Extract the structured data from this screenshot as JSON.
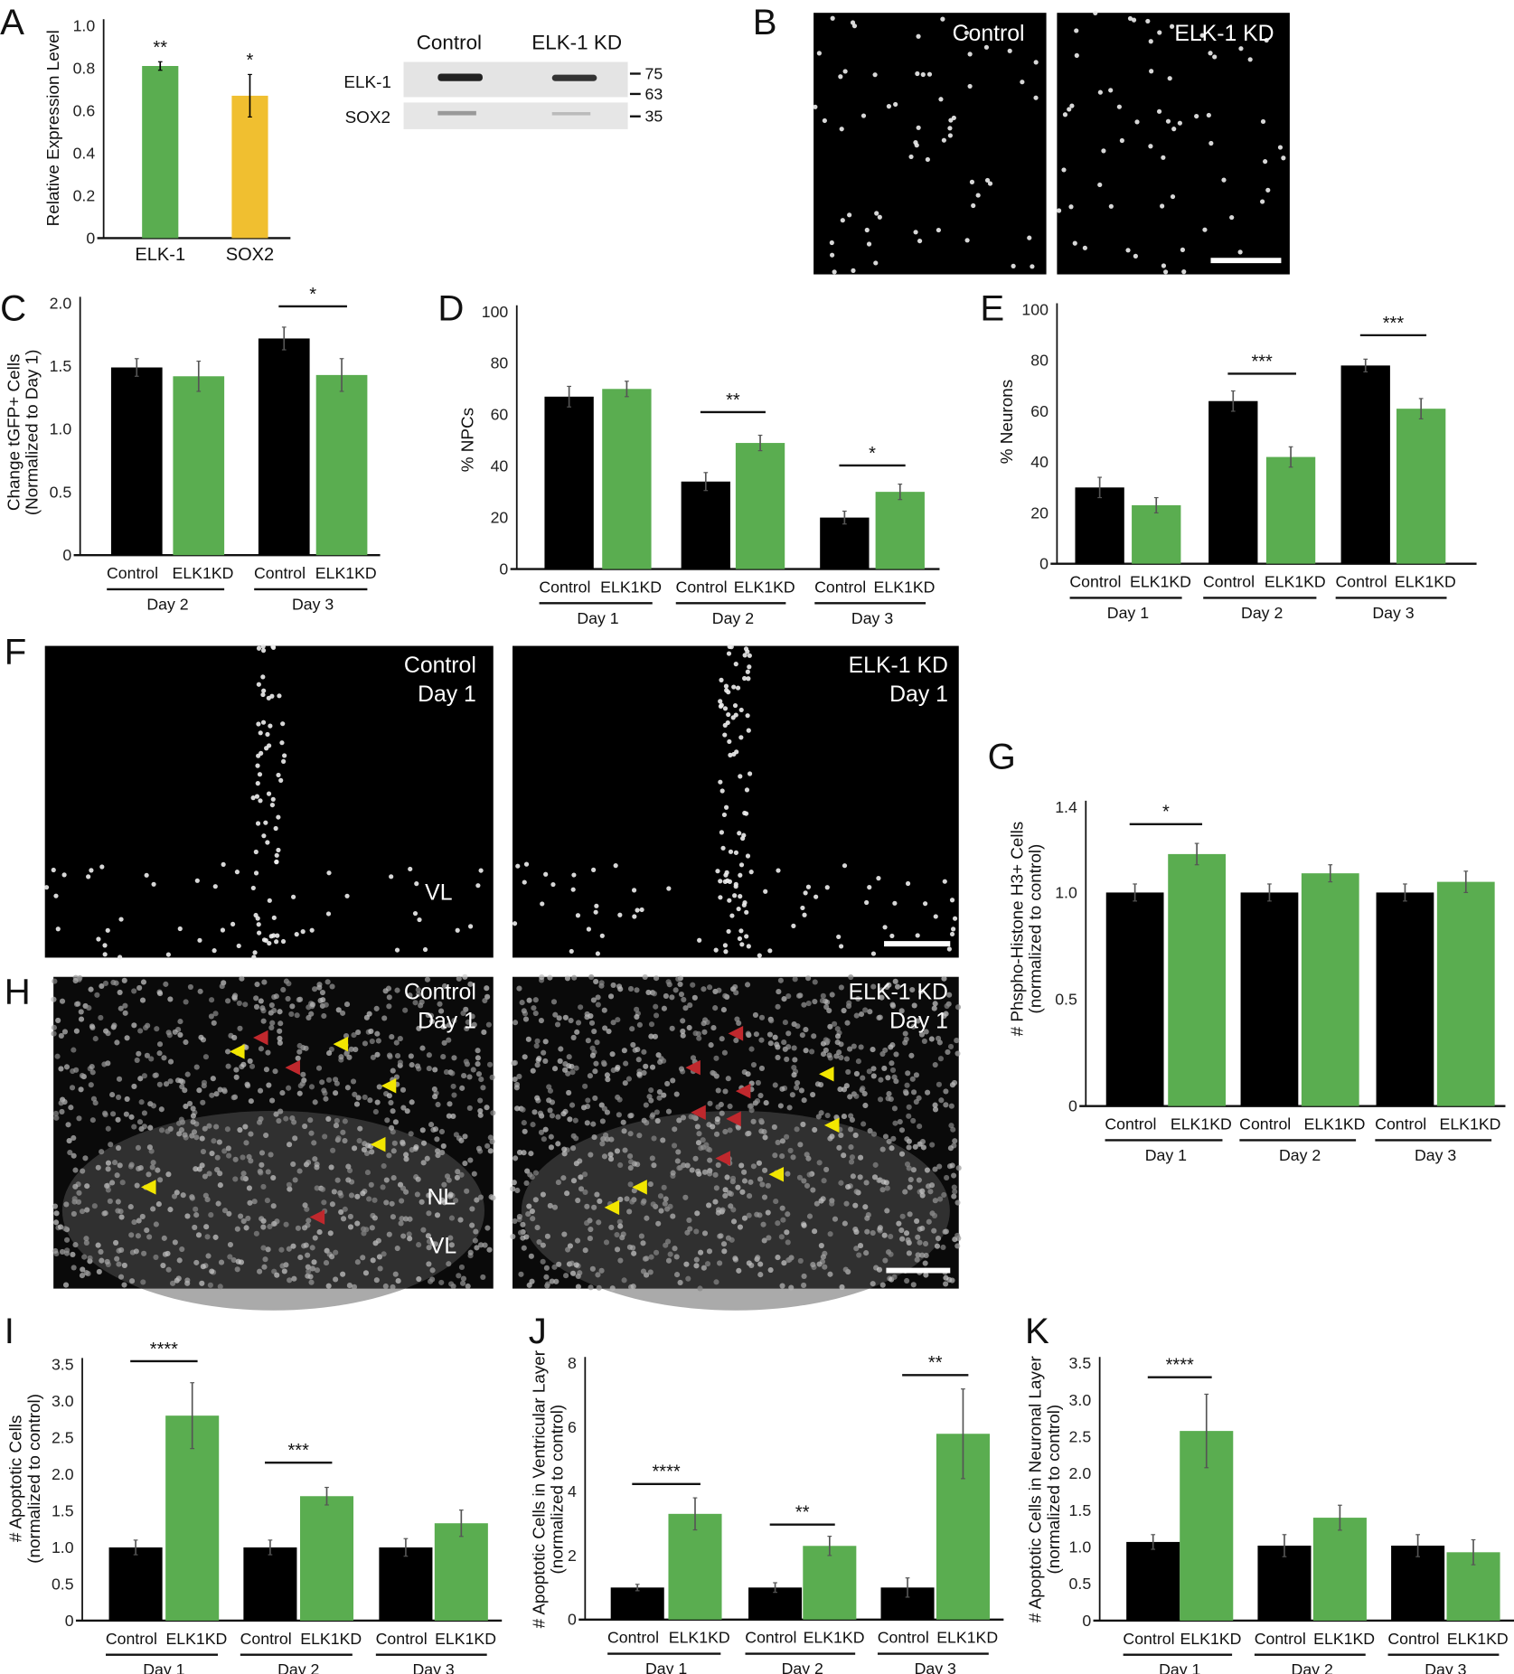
{
  "panel_letters": [
    "A",
    "B",
    "C",
    "D",
    "E",
    "F",
    "G",
    "H",
    "I",
    "J",
    "K"
  ],
  "colors": {
    "control": "#000000",
    "elk1kd": "#5aad50",
    "sox2": "#f0bf30",
    "arrow_red": "#c0282d",
    "arrow_yellow": "#f2e600"
  },
  "blot": {
    "lanes": [
      "Control",
      "ELK-1 KD"
    ],
    "rows": [
      "ELK-1",
      "SOX2"
    ],
    "markers": [
      "75",
      "63",
      "35"
    ]
  },
  "images": {
    "B": {
      "left_label": "Control",
      "right_label": "ELK-1 KD"
    },
    "F": {
      "left_label": [
        "Control",
        "Day 1"
      ],
      "right_label": [
        "ELK-1 KD",
        "Day 1"
      ],
      "region": "VL"
    },
    "H": {
      "left_label": [
        "Control",
        "Day 1"
      ],
      "right_label": [
        "ELK-1 KD",
        "Day 1"
      ],
      "regions": [
        "NL",
        "VL"
      ]
    }
  },
  "chart_data": [
    {
      "id": "A",
      "type": "bar",
      "ylabel": [
        "Relative  Expression Level"
      ],
      "ylim": [
        0,
        1.0
      ],
      "yticks": [
        "0",
        "0.2",
        "0.4",
        "0.6",
        "0.8",
        "1.0"
      ],
      "ytick_values": [
        0,
        0.2,
        0.4,
        0.6,
        0.8,
        1.0
      ],
      "categories": [
        "ELK-1",
        "SOX2"
      ],
      "values": [
        0.81,
        0.67
      ],
      "errors": [
        0.02,
        0.1
      ],
      "significance": [
        "**",
        "*"
      ]
    },
    {
      "id": "C",
      "type": "bar",
      "ylabel": [
        "Change tGFP+ Cells",
        "(Normalized to Day 1)"
      ],
      "ylim": [
        0,
        2.0
      ],
      "yticks": [
        "0",
        "0.5",
        "1.0",
        "1.5",
        "2.0"
      ],
      "ytick_values": [
        0,
        0.5,
        1.0,
        1.5,
        2.0
      ],
      "groups": [
        "Day 2",
        "Day 3"
      ],
      "series_labels": [
        "Control",
        "ELK1KD"
      ],
      "series": [
        {
          "name": "Control",
          "values": [
            1.49,
            1.72
          ],
          "errors": [
            0.07,
            0.09
          ]
        },
        {
          "name": "ELK1KD",
          "values": [
            1.42,
            1.43
          ],
          "errors": [
            0.12,
            0.13
          ]
        }
      ],
      "significance": [
        "",
        "*"
      ]
    },
    {
      "id": "D",
      "type": "bar",
      "ylabel": [
        "% NPCs"
      ],
      "ylim": [
        0,
        100
      ],
      "yticks": [
        "0",
        "20",
        "40",
        "60",
        "80",
        "100"
      ],
      "ytick_values": [
        0,
        20,
        40,
        60,
        80,
        100
      ],
      "groups": [
        "Day 1",
        "Day 2",
        "Day 3"
      ],
      "series_labels": [
        "Control",
        "ELK1KD"
      ],
      "series": [
        {
          "name": "Control",
          "values": [
            67,
            34,
            20
          ],
          "errors": [
            4,
            3.5,
            2.5
          ]
        },
        {
          "name": "ELK1KD",
          "values": [
            70,
            49,
            30
          ],
          "errors": [
            3,
            3,
            3
          ]
        }
      ],
      "significance": [
        "",
        "**",
        "*"
      ]
    },
    {
      "id": "E",
      "type": "bar",
      "ylabel": [
        "% Neurons"
      ],
      "ylim": [
        0,
        100
      ],
      "yticks": [
        "0",
        "20",
        "40",
        "60",
        "80",
        "100"
      ],
      "ytick_values": [
        0,
        20,
        40,
        60,
        80,
        100
      ],
      "groups": [
        "Day 1",
        "Day 2",
        "Day 3"
      ],
      "series_labels": [
        "Control",
        "ELK1KD"
      ],
      "series": [
        {
          "name": "Control",
          "values": [
            30,
            64,
            78
          ],
          "errors": [
            4,
            4,
            2.5
          ]
        },
        {
          "name": "ELK1KD",
          "values": [
            23,
            42,
            61
          ],
          "errors": [
            3,
            4,
            4
          ]
        }
      ],
      "significance": [
        "",
        "***",
        "***"
      ]
    },
    {
      "id": "G",
      "type": "bar",
      "ylabel": [
        "# Phspho-Histone H3+ Cells",
        "(normalized to control)"
      ],
      "ylim": [
        0,
        1.4
      ],
      "yticks": [
        "0",
        "0.5",
        "1.0",
        "1.4"
      ],
      "ytick_values": [
        0,
        0.5,
        1.0,
        1.4
      ],
      "groups": [
        "Day 1",
        "Day 2",
        "Day 3"
      ],
      "series_labels": [
        "Control",
        "ELK1KD"
      ],
      "series": [
        {
          "name": "Control",
          "values": [
            1.0,
            1.0,
            1.0
          ],
          "errors": [
            0.04,
            0.04,
            0.04
          ]
        },
        {
          "name": "ELK1KD",
          "values": [
            1.18,
            1.09,
            1.05
          ],
          "errors": [
            0.05,
            0.04,
            0.05
          ]
        }
      ],
      "significance": [
        "*",
        "",
        ""
      ]
    },
    {
      "id": "I",
      "type": "bar",
      "ylabel": [
        "# Apoptotic Cells",
        "(normalized to control)"
      ],
      "ylim": [
        0,
        3.5
      ],
      "yticks": [
        "0",
        "0.5",
        "1.0",
        "1.5",
        "2.0",
        "2.5",
        "3.0",
        "3.5"
      ],
      "ytick_values": [
        0,
        0.5,
        1.0,
        1.5,
        2.0,
        2.5,
        3.0,
        3.5
      ],
      "groups": [
        "Day 1",
        "Day 2",
        "Day 3"
      ],
      "series_labels": [
        "Control",
        "ELK1KD"
      ],
      "series": [
        {
          "name": "Control",
          "values": [
            1.0,
            1.0,
            1.0
          ],
          "errors": [
            0.1,
            0.1,
            0.12
          ]
        },
        {
          "name": "ELK1KD",
          "values": [
            2.8,
            1.7,
            1.33
          ],
          "errors": [
            0.45,
            0.12,
            0.18
          ]
        }
      ],
      "significance": [
        "****",
        "***",
        ""
      ]
    },
    {
      "id": "J",
      "type": "bar",
      "ylabel": [
        "# Apoptotic Cells in Ventricular Layer",
        "(normalized to control)"
      ],
      "ylim": [
        0,
        8
      ],
      "yticks": [
        "0",
        "2",
        "4",
        "6",
        "8"
      ],
      "ytick_values": [
        0,
        2,
        4,
        6,
        8
      ],
      "groups": [
        "Day 1",
        "Day 2",
        "Day 3"
      ],
      "series_labels": [
        "Control",
        "ELK1KD"
      ],
      "series": [
        {
          "name": "Control",
          "values": [
            1.0,
            1.0,
            1.0
          ],
          "errors": [
            0.1,
            0.15,
            0.3
          ]
        },
        {
          "name": "ELK1KD",
          "values": [
            3.3,
            2.3,
            5.8
          ],
          "errors": [
            0.5,
            0.3,
            1.4
          ]
        }
      ],
      "significance": [
        "****",
        "**",
        "**"
      ]
    },
    {
      "id": "K",
      "type": "bar",
      "ylabel": [
        "# Apoptotic Cells in Neuronal Layer",
        "(normalized to control)"
      ],
      "ylim": [
        0,
        3.5
      ],
      "yticks": [
        "0",
        "0.5",
        "1.0",
        "1.5",
        "2.0",
        "2.5",
        "3.0",
        "3.5"
      ],
      "ytick_values": [
        0,
        0.5,
        1.0,
        1.5,
        2.0,
        2.5,
        3.0,
        3.5
      ],
      "groups": [
        "Day 1",
        "Day 2",
        "Day 3"
      ],
      "series_labels": [
        "Control",
        "ELK1KD"
      ],
      "series": [
        {
          "name": "Control",
          "values": [
            1.07,
            1.02,
            1.02
          ],
          "errors": [
            0.1,
            0.15,
            0.15
          ]
        },
        {
          "name": "ELK1KD",
          "values": [
            2.58,
            1.4,
            0.93
          ],
          "errors": [
            0.5,
            0.17,
            0.17
          ]
        }
      ],
      "significance": [
        "****",
        "",
        ""
      ]
    }
  ]
}
